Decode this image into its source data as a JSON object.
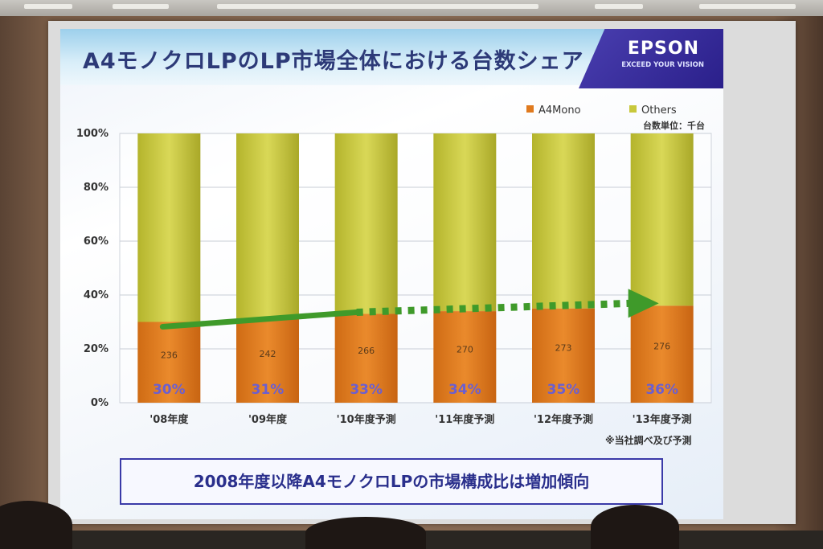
{
  "slide": {
    "title": "A4モノクロLPのLP市場全体における台数シェア",
    "logo": "EPSON",
    "logo_tagline": "EXCEED YOUR VISION",
    "unit_note": "台数単位：千台",
    "footnote": "※当社調べ及び予測",
    "callout": "2008年度以降A4モノクロLPの市場構成比は増加傾向"
  },
  "colors": {
    "a4mono": "#e07a1e",
    "others": "#c8c83c",
    "arrow": "#3f9a2a",
    "percent_label": "#6b5fd0"
  },
  "chart_data": {
    "type": "bar",
    "stacked": true,
    "categories": [
      "'08年度",
      "'09年度",
      "'10年度予測",
      "'11年度予測",
      "'12年度予測",
      "'13年度予測"
    ],
    "series": [
      {
        "name": "A4Mono",
        "share_percent": [
          30,
          31,
          33,
          34,
          35,
          36
        ],
        "units": [
          236,
          242,
          266,
          270,
          273,
          276
        ]
      },
      {
        "name": "Others",
        "share_percent": [
          70,
          69,
          67,
          66,
          65,
          64
        ]
      }
    ],
    "percent_labels": [
      "30%",
      "31%",
      "33%",
      "34%",
      "35%",
      "36%"
    ],
    "unit_labels": [
      "236",
      "242",
      "266",
      "270",
      "273",
      "276"
    ],
    "yticks": [
      "0%",
      "20%",
      "40%",
      "60%",
      "80%",
      "100%"
    ],
    "ylim": [
      0,
      100
    ],
    "grid": true,
    "legend_position": "top-right",
    "trend": "arrow across bar tops, solid for actual years, dotted for forecast years"
  }
}
